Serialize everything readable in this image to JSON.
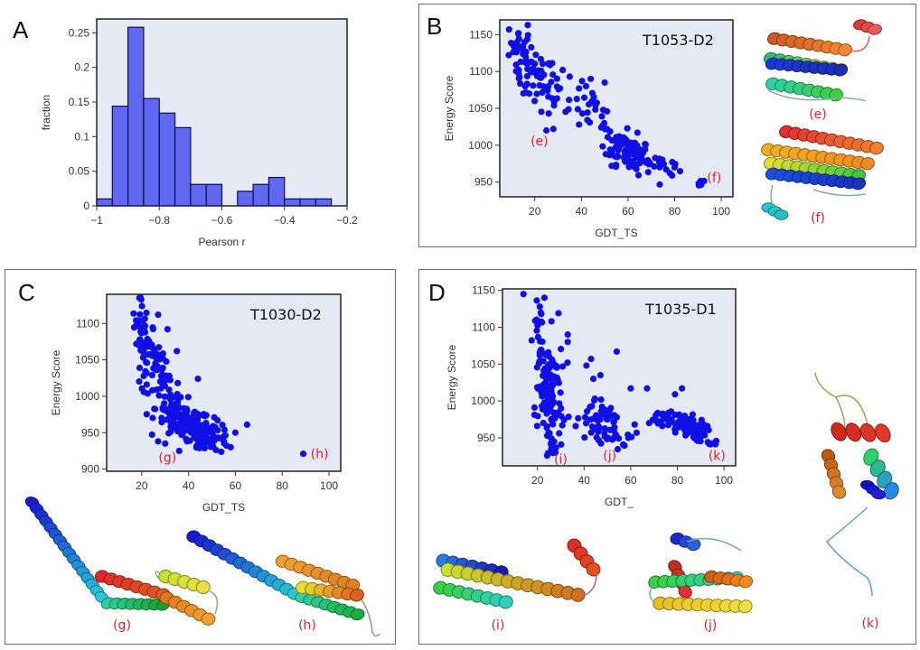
{
  "figure": {
    "panels": [
      "A",
      "B",
      "C",
      "D"
    ]
  },
  "colors": {
    "plot_bg": "#e4e9f4",
    "bar_fill": "#6168f0",
    "bar_edge": "#0b0b55",
    "point": "#1010e6",
    "annotation": "#e0202a"
  },
  "chart_data": [
    {
      "id": "A",
      "type": "bar",
      "subtype": "histogram",
      "panel_label": "A",
      "title": "",
      "xlabel": "Pearson r",
      "ylabel": "fraction",
      "xlim": [
        -1,
        -0.2
      ],
      "ylim": [
        0,
        0.27
      ],
      "xticks": [
        -1,
        -0.8,
        -0.6,
        -0.4,
        -0.2
      ],
      "xtick_labels": [
        "−1",
        "−0.8",
        "−0.6",
        "−0.4",
        "−0.2"
      ],
      "yticks": [
        0,
        0.05,
        0.1,
        0.15,
        0.2,
        0.25
      ],
      "ytick_labels": [
        "0",
        "0.05",
        "0.1",
        "0.15",
        "0.2",
        "0.25"
      ],
      "bin_width": 0.05,
      "bin_starts": [
        -1,
        -0.95,
        -0.9,
        -0.85,
        -0.8,
        -0.75,
        -0.7,
        -0.65,
        -0.6,
        -0.55,
        -0.5,
        -0.45,
        -0.4,
        -0.35,
        -0.3
      ],
      "values": [
        0.01,
        0.144,
        0.258,
        0.155,
        0.134,
        0.113,
        0.031,
        0.031,
        0,
        0.021,
        0.031,
        0.041,
        0.01,
        0.01,
        0.01
      ],
      "grid": false
    },
    {
      "id": "B",
      "type": "scatter",
      "panel_label": "B",
      "title": "T1053-D2",
      "xlabel": "GDT_TS",
      "ylabel": "Energy Score",
      "xlim": [
        5,
        105
      ],
      "ylim": [
        930,
        1170
      ],
      "xticks": [
        20,
        40,
        60,
        80,
        100
      ],
      "yticks": [
        950,
        1000,
        1050,
        1100,
        1150
      ],
      "annotations": [
        {
          "text": "(e)",
          "x": 22,
          "y": 1000
        },
        {
          "text": "(f)",
          "x": 97,
          "y": 950
        }
      ],
      "clusters": [
        {
          "cx": 14,
          "cy": 1130,
          "sx": 2.5,
          "sy": 15,
          "n": 25,
          "slope": 0
        },
        {
          "cx": 20,
          "cy": 1090,
          "sx": 4,
          "sy": 20,
          "n": 45,
          "slope": -1.5
        },
        {
          "cx": 30,
          "cy": 1070,
          "sx": 4,
          "sy": 15,
          "n": 15,
          "slope": -1.5
        },
        {
          "cx": 45,
          "cy": 1045,
          "sx": 4,
          "sy": 15,
          "n": 20,
          "slope": -2
        },
        {
          "cx": 60,
          "cy": 993,
          "sx": 5,
          "sy": 13,
          "n": 110,
          "slope": -1.5
        },
        {
          "cx": 74,
          "cy": 975,
          "sx": 3,
          "sy": 7,
          "n": 15,
          "slope": -1
        },
        {
          "cx": 91,
          "cy": 948,
          "sx": 0.8,
          "sy": 2,
          "n": 8,
          "slope": 0
        }
      ],
      "points": [
        [
          9,
          1157
        ],
        [
          17,
          1163
        ],
        [
          13,
          1152
        ],
        [
          25,
          1020
        ],
        [
          28,
          1022
        ],
        [
          26,
          1043
        ],
        [
          32,
          1102
        ],
        [
          35,
          1093
        ],
        [
          39,
          1028
        ],
        [
          39,
          1077
        ],
        [
          44,
          1090
        ],
        [
          50,
          1085
        ],
        [
          53,
          972
        ],
        [
          78,
          962
        ],
        [
          80,
          970
        ]
      ]
    },
    {
      "id": "C",
      "type": "scatter",
      "panel_label": "C",
      "title": "T1030-D2",
      "xlabel": "GDT_TS",
      "ylabel": "Energy Score",
      "xlim": [
        5,
        105
      ],
      "ylim": [
        897,
        1140
      ],
      "xticks": [
        20,
        40,
        60,
        80,
        100
      ],
      "yticks": [
        900,
        950,
        1000,
        1050,
        1100
      ],
      "annotations": [
        {
          "text": "(g)",
          "x": 31,
          "y": 910
        },
        {
          "text": "(h)",
          "x": 96,
          "y": 915
        }
      ],
      "clusters": [
        {
          "cx": 20,
          "cy": 1110,
          "sx": 1.2,
          "sy": 15,
          "n": 20,
          "slope": 0
        },
        {
          "cx": 22,
          "cy": 1065,
          "sx": 3,
          "sy": 15,
          "n": 35,
          "slope": -2
        },
        {
          "cx": 28,
          "cy": 1020,
          "sx": 4,
          "sy": 18,
          "n": 45,
          "slope": -3
        },
        {
          "cx": 38,
          "cy": 965,
          "sx": 6,
          "sy": 15,
          "n": 130,
          "slope": -1.5
        },
        {
          "cx": 50,
          "cy": 945,
          "sx": 4,
          "sy": 10,
          "n": 45,
          "slope": -0.8
        }
      ],
      "points": [
        [
          19,
          1135
        ],
        [
          27,
          1112
        ],
        [
          31,
          1092
        ],
        [
          35,
          1062
        ],
        [
          44,
          1024
        ],
        [
          51,
          971
        ],
        [
          60,
          950
        ],
        [
          65,
          961
        ],
        [
          58,
          930
        ],
        [
          36,
          925
        ],
        [
          30,
          935
        ],
        [
          27,
          938
        ],
        [
          89,
          921
        ]
      ]
    },
    {
      "id": "D",
      "type": "scatter",
      "panel_label": "D",
      "title": "T1035-D1",
      "xlabel": "GDT_",
      "ylabel": "Energy Score",
      "xlim": [
        5,
        105
      ],
      "ylim": [
        912,
        1152
      ],
      "xticks": [
        20,
        40,
        60,
        80,
        100
      ],
      "yticks": [
        950,
        1000,
        1050,
        1100,
        1150
      ],
      "annotations": [
        {
          "text": "(i)",
          "x": 30,
          "y": 915
        },
        {
          "text": "(j)",
          "x": 51,
          "y": 920
        },
        {
          "text": "(k)",
          "x": 97,
          "y": 920
        }
      ],
      "clusters": [
        {
          "cx": 21,
          "cy": 1080,
          "sx": 1.5,
          "sy": 25,
          "n": 25,
          "slope": 0
        },
        {
          "cx": 25,
          "cy": 1040,
          "sx": 2.5,
          "sy": 15,
          "n": 40,
          "slope": 0
        },
        {
          "cx": 25,
          "cy": 990,
          "sx": 3,
          "sy": 25,
          "n": 70,
          "slope": 0
        },
        {
          "cx": 27,
          "cy": 945,
          "sx": 2,
          "sy": 12,
          "n": 15,
          "slope": 0
        },
        {
          "cx": 45,
          "cy": 975,
          "sx": 4,
          "sy": 15,
          "n": 35,
          "slope": 0
        },
        {
          "cx": 53,
          "cy": 965,
          "sx": 4,
          "sy": 15,
          "n": 35,
          "slope": -1
        },
        {
          "cx": 72,
          "cy": 975,
          "sx": 4,
          "sy": 8,
          "n": 20,
          "slope": 0
        },
        {
          "cx": 84,
          "cy": 965,
          "sx": 4,
          "sy": 8,
          "n": 70,
          "slope": -0.8
        },
        {
          "cx": 95,
          "cy": 943,
          "sx": 1.2,
          "sy": 2,
          "n": 6,
          "slope": 0
        }
      ],
      "points": [
        [
          14,
          1145
        ],
        [
          23,
          1140
        ],
        [
          21,
          1128
        ],
        [
          29,
          1119
        ],
        [
          26,
          1108
        ],
        [
          33,
          1090
        ],
        [
          33,
          1080
        ],
        [
          54,
          1067
        ],
        [
          43,
          1057
        ],
        [
          41,
          1048
        ],
        [
          47,
          1035
        ],
        [
          60,
          1017
        ],
        [
          67,
          1017
        ],
        [
          82,
          1017
        ],
        [
          79,
          1009
        ],
        [
          44,
          1030
        ],
        [
          59,
          950
        ]
      ]
    }
  ],
  "structures": [
    {
      "panel": "B",
      "label": "(e)"
    },
    {
      "panel": "B",
      "label": "(f)"
    },
    {
      "panel": "C",
      "label": "(g)"
    },
    {
      "panel": "C",
      "label": "(h)"
    },
    {
      "panel": "D",
      "label": "(i)"
    },
    {
      "panel": "D",
      "label": "(j)"
    },
    {
      "panel": "D",
      "label": "(k)"
    }
  ]
}
